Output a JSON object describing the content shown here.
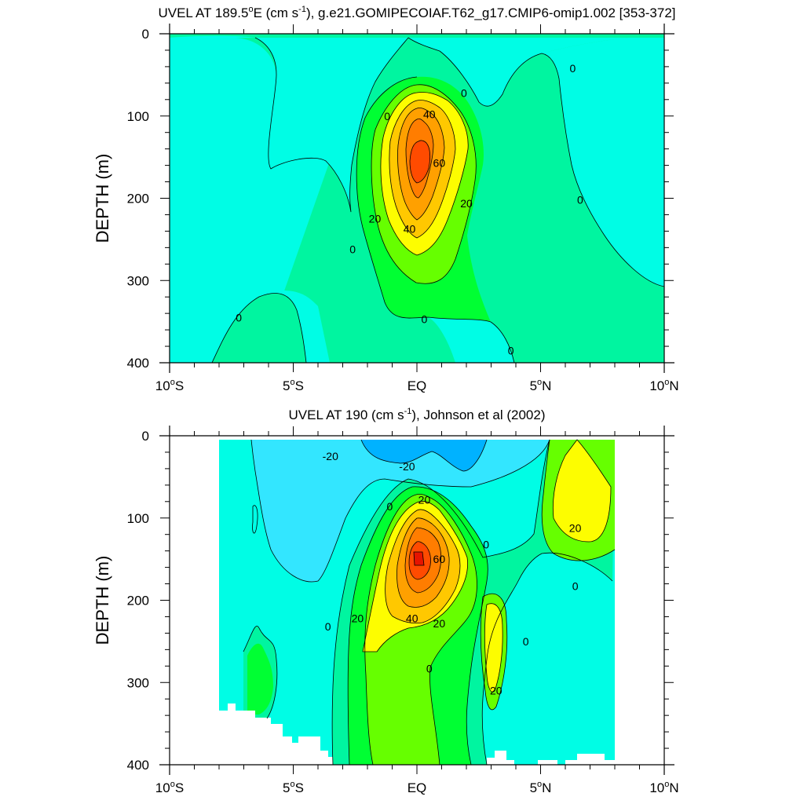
{
  "colors": {
    "neg20": "#00b2ff",
    "neg10": "#33e6ff",
    "zero_neg": "#00fde5",
    "pos0": "#00f5a0",
    "pos10": "#00ff33",
    "pos20": "#66ff00",
    "pos30": "#fdfd00",
    "pos40": "#ffc800",
    "pos50": "#ffa000",
    "pos60": "#ff7d00",
    "pos70": "#ff4b00",
    "pos80": "#e61400",
    "line": "#000000"
  },
  "chart_data": [
    {
      "type": "contour",
      "title": "UVEL AT 189.5°E (cm s-1), g.e21.GOMIPECOIAF.T62_g17.CMIP6-omip1.002 [353-372]",
      "title_parts": {
        "pre": "UVEL AT 189.5",
        "deg": "o",
        "mid": "E (cm s",
        "sup": "-1",
        "post": "), g.e21.GOMIPECOIAF.T62_g17.CMIP6-omip1.002 [353-372]"
      },
      "ylabel": "DEPTH (m)",
      "xlim": [
        -10,
        10
      ],
      "ylim": [
        400,
        0
      ],
      "x_ticks": [
        -10,
        -5,
        0,
        5,
        10
      ],
      "x_tick_labels": [
        {
          "num": "10",
          "deg": "o",
          "hem": "S"
        },
        {
          "num": "5",
          "deg": "o",
          "hem": "S"
        },
        {
          "num": "EQ",
          "deg": "",
          "hem": ""
        },
        {
          "num": "5",
          "deg": "o",
          "hem": "N"
        },
        {
          "num": "10",
          "deg": "o",
          "hem": "N"
        }
      ],
      "y_ticks": [
        0,
        100,
        200,
        300,
        400
      ],
      "y_tick_labels": [
        "0",
        "100",
        "200",
        "300",
        "400"
      ],
      "contour_interval": 10,
      "core": {
        "lat": 0.0,
        "depth": 160,
        "max_value": 70
      },
      "contour_labels": [
        {
          "text": "0",
          "lat": -1.2,
          "depth": 100
        },
        {
          "text": "0",
          "lat": 1.9,
          "depth": 72
        },
        {
          "text": "0",
          "lat": 6.3,
          "depth": 42
        },
        {
          "text": "0",
          "lat": 6.6,
          "depth": 202
        },
        {
          "text": "0",
          "lat": -2.6,
          "depth": 262
        },
        {
          "text": "0",
          "lat": -7.2,
          "depth": 345
        },
        {
          "text": "0",
          "lat": 0.3,
          "depth": 347
        },
        {
          "text": "0",
          "lat": 3.8,
          "depth": 385
        },
        {
          "text": "40",
          "lat": 0.5,
          "depth": 98
        },
        {
          "text": "60",
          "lat": 0.9,
          "depth": 157
        },
        {
          "text": "20",
          "lat": -1.7,
          "depth": 225
        },
        {
          "text": "40",
          "lat": -0.3,
          "depth": 237
        },
        {
          "text": "20",
          "lat": 2.0,
          "depth": 206
        }
      ]
    },
    {
      "type": "contour",
      "title": "UVEL AT 190 (cm s-1), Johnson et al (2002)",
      "title_parts": {
        "pre": "UVEL AT 190 (cm s",
        "sup": "-1",
        "post": "), Johnson et al (2002)"
      },
      "ylabel": "DEPTH (m)",
      "xlim": [
        -10,
        10
      ],
      "ylim": [
        400,
        0
      ],
      "x_ticks": [
        -10,
        -5,
        0,
        5,
        10
      ],
      "x_tick_labels": [
        {
          "num": "10",
          "deg": "o",
          "hem": "S"
        },
        {
          "num": "5",
          "deg": "o",
          "hem": "S"
        },
        {
          "num": "EQ",
          "deg": "",
          "hem": ""
        },
        {
          "num": "5",
          "deg": "o",
          "hem": "N"
        },
        {
          "num": "10",
          "deg": "o",
          "hem": "N"
        }
      ],
      "y_ticks": [
        0,
        100,
        200,
        300,
        400
      ],
      "y_tick_labels": [
        "0",
        "100",
        "200",
        "300",
        "400"
      ],
      "data_lat_range": [
        -8,
        8
      ],
      "contour_interval": 10,
      "core": {
        "lat": 0.0,
        "depth": 150,
        "max_value": 80
      },
      "contour_labels": [
        {
          "text": "-20",
          "lat": -3.5,
          "depth": 25
        },
        {
          "text": "-20",
          "lat": -0.4,
          "depth": 37
        },
        {
          "text": "20",
          "lat": 0.3,
          "depth": 78
        },
        {
          "text": "0",
          "lat": -1.1,
          "depth": 86
        },
        {
          "text": "0",
          "lat": 2.8,
          "depth": 132
        },
        {
          "text": "20",
          "lat": 6.4,
          "depth": 112
        },
        {
          "text": "0",
          "lat": 6.4,
          "depth": 183
        },
        {
          "text": "60",
          "lat": 0.9,
          "depth": 150
        },
        {
          "text": "20",
          "lat": -2.4,
          "depth": 222
        },
        {
          "text": "40",
          "lat": -0.2,
          "depth": 222
        },
        {
          "text": "20",
          "lat": 0.9,
          "depth": 228
        },
        {
          "text": "0",
          "lat": -3.6,
          "depth": 232
        },
        {
          "text": "0",
          "lat": 4.4,
          "depth": 250
        },
        {
          "text": "0",
          "lat": 0.5,
          "depth": 283
        },
        {
          "text": "20",
          "lat": 3.2,
          "depth": 310
        }
      ]
    }
  ]
}
